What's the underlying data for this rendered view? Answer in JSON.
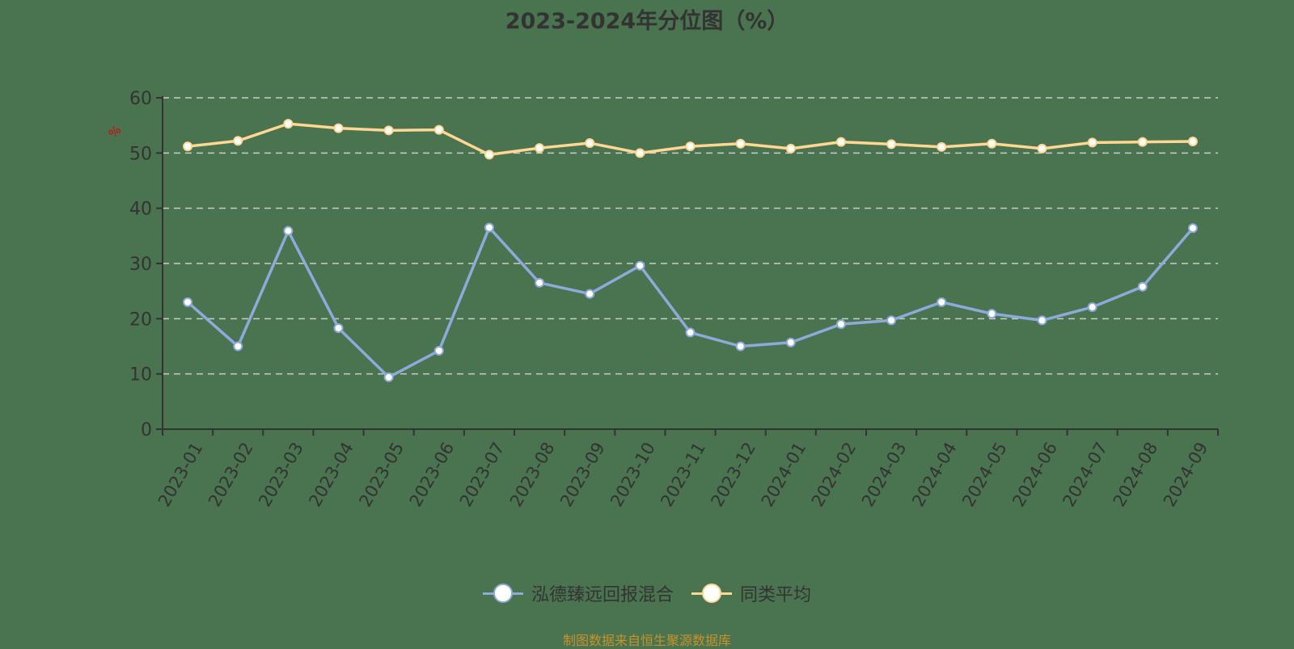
{
  "title": "2023-2024年分位图（%）",
  "source_note": "制图数据来自恒生聚源数据库",
  "y_axis_title": "%",
  "legend": [
    {
      "name": "泓德臻远回报混合",
      "color": "#8eaadb"
    },
    {
      "name": "同类平均",
      "color": "#ffd792"
    }
  ],
  "colors": {
    "background": "#4a7350",
    "axis": "#333333",
    "grid": "#cccccc",
    "series_fund": "#8eaadb",
    "series_avg": "#ffd792",
    "source_text": "#c8922a",
    "y_axis_title": "#e00000"
  },
  "chart_data": {
    "type": "line",
    "title": "2023-2024年分位图（%）",
    "xlabel": "",
    "ylabel": "%",
    "ylim": [
      0,
      60
    ],
    "yticks": [
      0,
      10,
      20,
      30,
      40,
      50,
      60
    ],
    "grid": true,
    "legend_position": "bottom",
    "categories": [
      "2023-01",
      "2023-02",
      "2023-03",
      "2023-04",
      "2023-05",
      "2023-06",
      "2023-07",
      "2023-08",
      "2023-09",
      "2023-10",
      "2023-11",
      "2023-12",
      "2024-01",
      "2024-02",
      "2024-03",
      "2024-04",
      "2024-05",
      "2024-06",
      "2024-07",
      "2024-08",
      "2024-09"
    ],
    "series": [
      {
        "name": "泓德臻远回报混合",
        "values": [
          23.0,
          15.0,
          35.9,
          18.3,
          9.4,
          14.2,
          36.5,
          26.5,
          24.5,
          29.6,
          17.5,
          15.0,
          15.7,
          19.0,
          19.7,
          23.0,
          20.9,
          19.7,
          22.1,
          25.8,
          36.4
        ]
      },
      {
        "name": "同类平均",
        "values": [
          51.2,
          52.2,
          55.3,
          54.5,
          54.1,
          54.2,
          49.7,
          50.9,
          51.8,
          50.0,
          51.2,
          51.7,
          50.8,
          52.0,
          51.6,
          51.1,
          51.7,
          50.8,
          51.9,
          52.0,
          52.1
        ]
      }
    ],
    "source": "制图数据来自恒生聚源数据库"
  }
}
